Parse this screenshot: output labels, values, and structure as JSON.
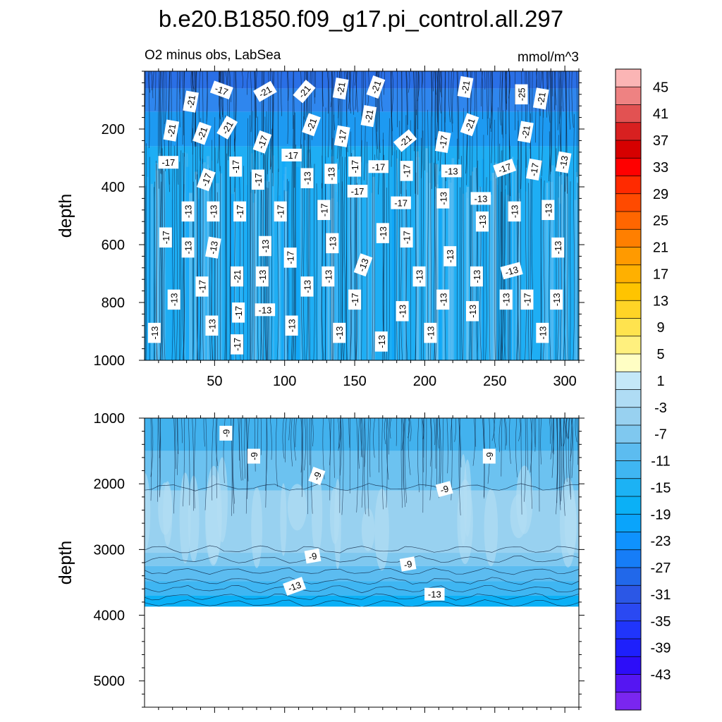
{
  "figure": {
    "title": "b.e20.B1850.f09_g17.pi_control.all.297",
    "subtitle_left": "O2 minus obs, LabSea",
    "subtitle_right": "mmol/m^3"
  },
  "chart_data": [
    {
      "type": "heatmap",
      "name": "upper-panel",
      "xlabel": "",
      "ylabel": "depth",
      "xlim": [
        0,
        310
      ],
      "ylim": [
        1000,
        0
      ],
      "xticks": [
        50,
        100,
        150,
        200,
        250,
        300
      ],
      "yticks": [
        200,
        400,
        600,
        800,
        1000
      ],
      "contour_labels": [
        {
          "text": "-21",
          "x": 33,
          "y": 105,
          "angle": -80
        },
        {
          "text": "-17",
          "x": 55,
          "y": 65,
          "angle": 20
        },
        {
          "text": "-21",
          "x": 86,
          "y": 70,
          "angle": -30
        },
        {
          "text": "-21",
          "x": 114,
          "y": 70,
          "angle": -50
        },
        {
          "text": "-21",
          "x": 140,
          "y": 60,
          "angle": -80
        },
        {
          "text": "-21",
          "x": 165,
          "y": 55,
          "angle": -70
        },
        {
          "text": "-21",
          "x": 229,
          "y": 55,
          "angle": -80
        },
        {
          "text": "-25",
          "x": 269,
          "y": 80,
          "angle": -90
        },
        {
          "text": "-21",
          "x": 283,
          "y": 95,
          "angle": -80
        },
        {
          "text": "-21",
          "x": 19,
          "y": 205,
          "angle": -80
        },
        {
          "text": "-21",
          "x": 41,
          "y": 215,
          "angle": -70
        },
        {
          "text": "-21",
          "x": 59,
          "y": 195,
          "angle": -60
        },
        {
          "text": "-17",
          "x": 84,
          "y": 245,
          "angle": -70
        },
        {
          "text": "-21",
          "x": 119,
          "y": 185,
          "angle": -70
        },
        {
          "text": "-17",
          "x": 141,
          "y": 225,
          "angle": -80
        },
        {
          "text": "-21",
          "x": 160,
          "y": 155,
          "angle": -80
        },
        {
          "text": "-21",
          "x": 186,
          "y": 240,
          "angle": -40
        },
        {
          "text": "-17",
          "x": 213,
          "y": 245,
          "angle": -80
        },
        {
          "text": "-21",
          "x": 232,
          "y": 185,
          "angle": -70
        },
        {
          "text": "-21",
          "x": 272,
          "y": 210,
          "angle": -80
        },
        {
          "text": "-17",
          "x": 17,
          "y": 315,
          "angle": 0
        },
        {
          "text": "-17",
          "x": 105,
          "y": 290,
          "angle": 0
        },
        {
          "text": "-17",
          "x": 44,
          "y": 375,
          "angle": -70
        },
        {
          "text": "-17",
          "x": 65,
          "y": 330,
          "angle": -90
        },
        {
          "text": "-17",
          "x": 81,
          "y": 375,
          "angle": -90
        },
        {
          "text": "-13",
          "x": 116,
          "y": 370,
          "angle": -90
        },
        {
          "text": "-13",
          "x": 133,
          "y": 355,
          "angle": -90
        },
        {
          "text": "-17",
          "x": 150,
          "y": 330,
          "angle": -90
        },
        {
          "text": "-17",
          "x": 167,
          "y": 330,
          "angle": 0
        },
        {
          "text": "-17",
          "x": 187,
          "y": 345,
          "angle": -90
        },
        {
          "text": "-13",
          "x": 219,
          "y": 345,
          "angle": 0
        },
        {
          "text": "-17",
          "x": 257,
          "y": 335,
          "angle": -20
        },
        {
          "text": "-17",
          "x": 278,
          "y": 340,
          "angle": -80
        },
        {
          "text": "-13",
          "x": 299,
          "y": 315,
          "angle": -80
        },
        {
          "text": "-17",
          "x": 152,
          "y": 415,
          "angle": 0
        },
        {
          "text": "-13",
          "x": 213,
          "y": 440,
          "angle": -90
        },
        {
          "text": "-13",
          "x": 240,
          "y": 440,
          "angle": 0
        },
        {
          "text": "-17",
          "x": 183,
          "y": 455,
          "angle": 0
        },
        {
          "text": "-13",
          "x": 31,
          "y": 485,
          "angle": -90
        },
        {
          "text": "-13",
          "x": 49,
          "y": 485,
          "angle": -90
        },
        {
          "text": "-17",
          "x": 68,
          "y": 485,
          "angle": -90
        },
        {
          "text": "-17",
          "x": 97,
          "y": 485,
          "angle": -90
        },
        {
          "text": "-17",
          "x": 128,
          "y": 480,
          "angle": -90
        },
        {
          "text": "-13",
          "x": 264,
          "y": 485,
          "angle": -90
        },
        {
          "text": "-13",
          "x": 288,
          "y": 480,
          "angle": -90
        },
        {
          "text": "-13",
          "x": 241,
          "y": 520,
          "angle": -90
        },
        {
          "text": "-13",
          "x": 170,
          "y": 560,
          "angle": -90
        },
        {
          "text": "-17",
          "x": 15,
          "y": 575,
          "angle": -90
        },
        {
          "text": "-13",
          "x": 31,
          "y": 610,
          "angle": -90
        },
        {
          "text": "-13",
          "x": 49,
          "y": 610,
          "angle": -80
        },
        {
          "text": "-13",
          "x": 86,
          "y": 605,
          "angle": -90
        },
        {
          "text": "-13",
          "x": 134,
          "y": 595,
          "angle": -90
        },
        {
          "text": "-17",
          "x": 187,
          "y": 575,
          "angle": -90
        },
        {
          "text": "-13",
          "x": 218,
          "y": 640,
          "angle": -90
        },
        {
          "text": "-13",
          "x": 295,
          "y": 610,
          "angle": -90
        },
        {
          "text": "-17",
          "x": 104,
          "y": 645,
          "angle": -90
        },
        {
          "text": "-13",
          "x": 156,
          "y": 670,
          "angle": -70
        },
        {
          "text": "-21",
          "x": 66,
          "y": 710,
          "angle": -90
        },
        {
          "text": "-13",
          "x": 84,
          "y": 710,
          "angle": -90
        },
        {
          "text": "-13",
          "x": 131,
          "y": 710,
          "angle": -90
        },
        {
          "text": "-13",
          "x": 196,
          "y": 710,
          "angle": -90
        },
        {
          "text": "-13",
          "x": 237,
          "y": 710,
          "angle": -90
        },
        {
          "text": "-13",
          "x": 262,
          "y": 690,
          "angle": -15
        },
        {
          "text": "-17",
          "x": 41,
          "y": 745,
          "angle": -90
        },
        {
          "text": "-13",
          "x": 116,
          "y": 745,
          "angle": -90
        },
        {
          "text": "-13",
          "x": 21,
          "y": 790,
          "angle": -90
        },
        {
          "text": "-17",
          "x": 150,
          "y": 790,
          "angle": -90
        },
        {
          "text": "-13",
          "x": 213,
          "y": 790,
          "angle": -90
        },
        {
          "text": "-13",
          "x": 258,
          "y": 790,
          "angle": -90
        },
        {
          "text": "-17",
          "x": 273,
          "y": 790,
          "angle": -90
        },
        {
          "text": "-13",
          "x": 294,
          "y": 790,
          "angle": -90
        },
        {
          "text": "-17",
          "x": 67,
          "y": 835,
          "angle": -90
        },
        {
          "text": "-13",
          "x": 86,
          "y": 825,
          "angle": 0
        },
        {
          "text": "-13",
          "x": 184,
          "y": 830,
          "angle": -90
        },
        {
          "text": "-13",
          "x": 234,
          "y": 830,
          "angle": -90
        },
        {
          "text": "-13",
          "x": 48,
          "y": 880,
          "angle": -90
        },
        {
          "text": "-13",
          "x": 105,
          "y": 880,
          "angle": -90
        },
        {
          "text": "-13",
          "x": 7,
          "y": 905,
          "angle": -90
        },
        {
          "text": "-13",
          "x": 139,
          "y": 905,
          "angle": -90
        },
        {
          "text": "-13",
          "x": 204,
          "y": 905,
          "angle": -90
        },
        {
          "text": "-13",
          "x": 284,
          "y": 905,
          "angle": -90
        },
        {
          "text": "-13",
          "x": 169,
          "y": 935,
          "angle": -90
        },
        {
          "text": "-17",
          "x": 66,
          "y": 945,
          "angle": -90
        }
      ]
    },
    {
      "type": "heatmap",
      "name": "lower-panel",
      "xlabel": "",
      "ylabel": "depth",
      "xlim": [
        0,
        310
      ],
      "ylim": [
        5400,
        1000
      ],
      "yticks": [
        1000,
        2000,
        3000,
        4000,
        5000
      ],
      "data_bottom_depth": 3870,
      "contour_labels": [
        {
          "text": "-9",
          "x": 58,
          "y": 1230,
          "angle": -90
        },
        {
          "text": "-9",
          "x": 78,
          "y": 1580,
          "angle": -90
        },
        {
          "text": "-9",
          "x": 123,
          "y": 1880,
          "angle": -70
        },
        {
          "text": "-9",
          "x": 246,
          "y": 1580,
          "angle": -90
        },
        {
          "text": "-9",
          "x": 214,
          "y": 2080,
          "angle": -15
        },
        {
          "text": "-9",
          "x": 120,
          "y": 3100,
          "angle": -10
        },
        {
          "text": "-9",
          "x": 188,
          "y": 3220,
          "angle": -10
        },
        {
          "text": "-13",
          "x": 107,
          "y": 3560,
          "angle": -20
        },
        {
          "text": "-13",
          "x": 207,
          "y": 3680,
          "angle": 0
        }
      ]
    }
  ],
  "colorbar": {
    "labels": [
      "45",
      "41",
      "37",
      "33",
      "29",
      "25",
      "21",
      "17",
      "13",
      "9",
      "5",
      "1",
      "-3",
      "-7",
      "-11",
      "-15",
      "-19",
      "-23",
      "-27",
      "-31",
      "-35",
      "-39",
      "-43"
    ],
    "colors": [
      "#fbb5b5",
      "#ee8282",
      "#e25252",
      "#d82020",
      "#d60000",
      "#ff0000",
      "#ff2a00",
      "#ff4a00",
      "#ff6600",
      "#ff7f00",
      "#ff9a00",
      "#ffb000",
      "#ffc400",
      "#ffd426",
      "#ffe34e",
      "#fff07e",
      "#fffec4",
      "#c4e8f8",
      "#afdcf4",
      "#98d1f0",
      "#7fc8ef",
      "#5cbcf0",
      "#3fb6f2",
      "#1cb2f4",
      "#0bb0f6",
      "#0aa4fb",
      "#0f92fe",
      "#167df7",
      "#2168ea",
      "#2b57e6",
      "#2a49f2",
      "#2035fb",
      "#1e20fc",
      "#2d0df8",
      "#5516f2",
      "#7a26ef"
    ]
  }
}
